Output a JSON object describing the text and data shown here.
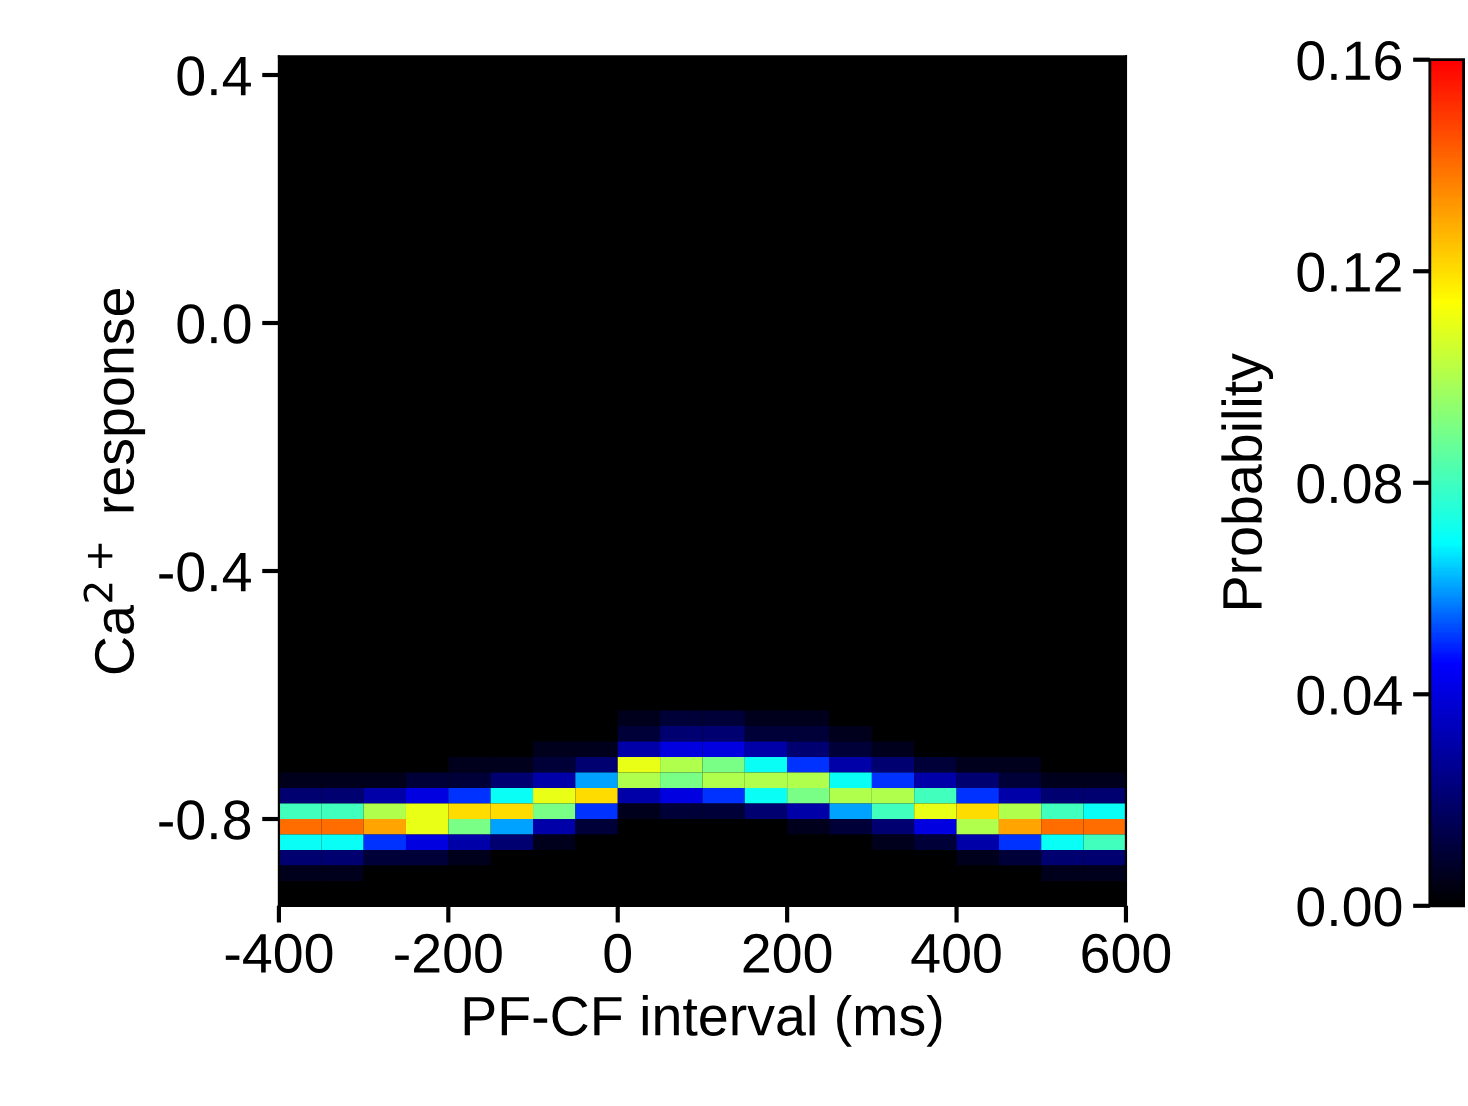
{
  "chart_data": {
    "type": "heatmap",
    "xlabel": "PF-CF interval (ms)",
    "ylabel": "Ca$^{2+}$ response",
    "clabel": "Probability",
    "x": [
      -375,
      -325,
      -275,
      -225,
      -175,
      -125,
      -75,
      -25,
      25,
      75,
      125,
      175,
      225,
      275,
      325,
      375,
      425,
      475,
      525,
      575
    ],
    "y": [
      -0.6375,
      -0.6625,
      -0.6875,
      -0.7125,
      -0.7375,
      -0.7625,
      -0.7875,
      -0.8125,
      -0.8375,
      -0.8625,
      -0.8875
    ],
    "cells": [
      [
        0,
        0,
        0,
        0,
        0,
        0,
        0,
        0,
        0.005,
        0.01,
        0.01,
        0.005,
        0.005,
        0,
        0,
        0,
        0,
        0,
        0,
        0
      ],
      [
        0,
        0,
        0,
        0,
        0,
        0,
        0,
        0,
        0.01,
        0.02,
        0.02,
        0.01,
        0.01,
        0.005,
        0,
        0,
        0,
        0,
        0,
        0
      ],
      [
        0,
        0,
        0,
        0,
        0,
        0,
        0.005,
        0.005,
        0.03,
        0.04,
        0.04,
        0.03,
        0.02,
        0.01,
        0.005,
        0,
        0,
        0,
        0,
        0
      ],
      [
        0,
        0,
        0,
        0,
        0.005,
        0.005,
        0.01,
        0.02,
        0.11,
        0.1,
        0.09,
        0.07,
        0.05,
        0.03,
        0.02,
        0.01,
        0.005,
        0.005,
        0,
        0
      ],
      [
        0.005,
        0.005,
        0.005,
        0.01,
        0.01,
        0.02,
        0.03,
        0.06,
        0.1,
        0.09,
        0.1,
        0.1,
        0.1,
        0.07,
        0.05,
        0.03,
        0.02,
        0.01,
        0.005,
        0.005
      ],
      [
        0.02,
        0.02,
        0.03,
        0.04,
        0.05,
        0.07,
        0.11,
        0.12,
        0.03,
        0.04,
        0.05,
        0.07,
        0.09,
        0.1,
        0.1,
        0.08,
        0.05,
        0.03,
        0.02,
        0.02
      ],
      [
        0.08,
        0.08,
        0.1,
        0.11,
        0.12,
        0.12,
        0.09,
        0.05,
        0.005,
        0.01,
        0.01,
        0.02,
        0.03,
        0.06,
        0.08,
        0.11,
        0.12,
        0.1,
        0.08,
        0.07
      ],
      [
        0.14,
        0.14,
        0.13,
        0.11,
        0.09,
        0.06,
        0.03,
        0.01,
        0,
        0,
        0,
        0,
        0.005,
        0.01,
        0.02,
        0.04,
        0.1,
        0.13,
        0.14,
        0.14
      ],
      [
        0.07,
        0.07,
        0.05,
        0.04,
        0.03,
        0.02,
        0.005,
        0,
        0,
        0,
        0,
        0,
        0,
        0,
        0.005,
        0.01,
        0.03,
        0.05,
        0.07,
        0.08
      ],
      [
        0.02,
        0.02,
        0.01,
        0.01,
        0.005,
        0,
        0,
        0,
        0,
        0,
        0,
        0,
        0,
        0,
        0,
        0,
        0.005,
        0.01,
        0.02,
        0.02
      ],
      [
        0.005,
        0.005,
        0,
        0,
        0,
        0,
        0,
        0,
        0,
        0,
        0,
        0,
        0,
        0,
        0,
        0,
        0,
        0,
        0.005,
        0.005
      ]
    ],
    "colors": [
      "#000000",
      "#00007f",
      "#0000ff",
      "#00ffff",
      "#7fff7f",
      "#ffff00",
      "#ff7f00",
      "#ff0000"
    ],
    "xlim": [
      -400,
      600
    ],
    "xticks": [
      -400,
      -200,
      0,
      200,
      400,
      600
    ],
    "ylim": [
      -0.94,
      0.43
    ],
    "yticks": [
      {
        "value": 0.4,
        "label": "0.4"
      },
      {
        "value": 0.0,
        "label": "0.0"
      },
      {
        "value": -0.4,
        "label": "-0.4"
      },
      {
        "value": -0.8,
        "label": "-0.8"
      }
    ],
    "clim": [
      0,
      0.16
    ],
    "cticks": [
      {
        "value": 0,
        "label": "0.00"
      },
      {
        "value": 0.04,
        "label": "0.04"
      },
      {
        "value": 0.08,
        "label": "0.08"
      },
      {
        "value": 0.12,
        "label": "0.12"
      },
      {
        "value": 0.16,
        "label": "0.16"
      }
    ]
  }
}
